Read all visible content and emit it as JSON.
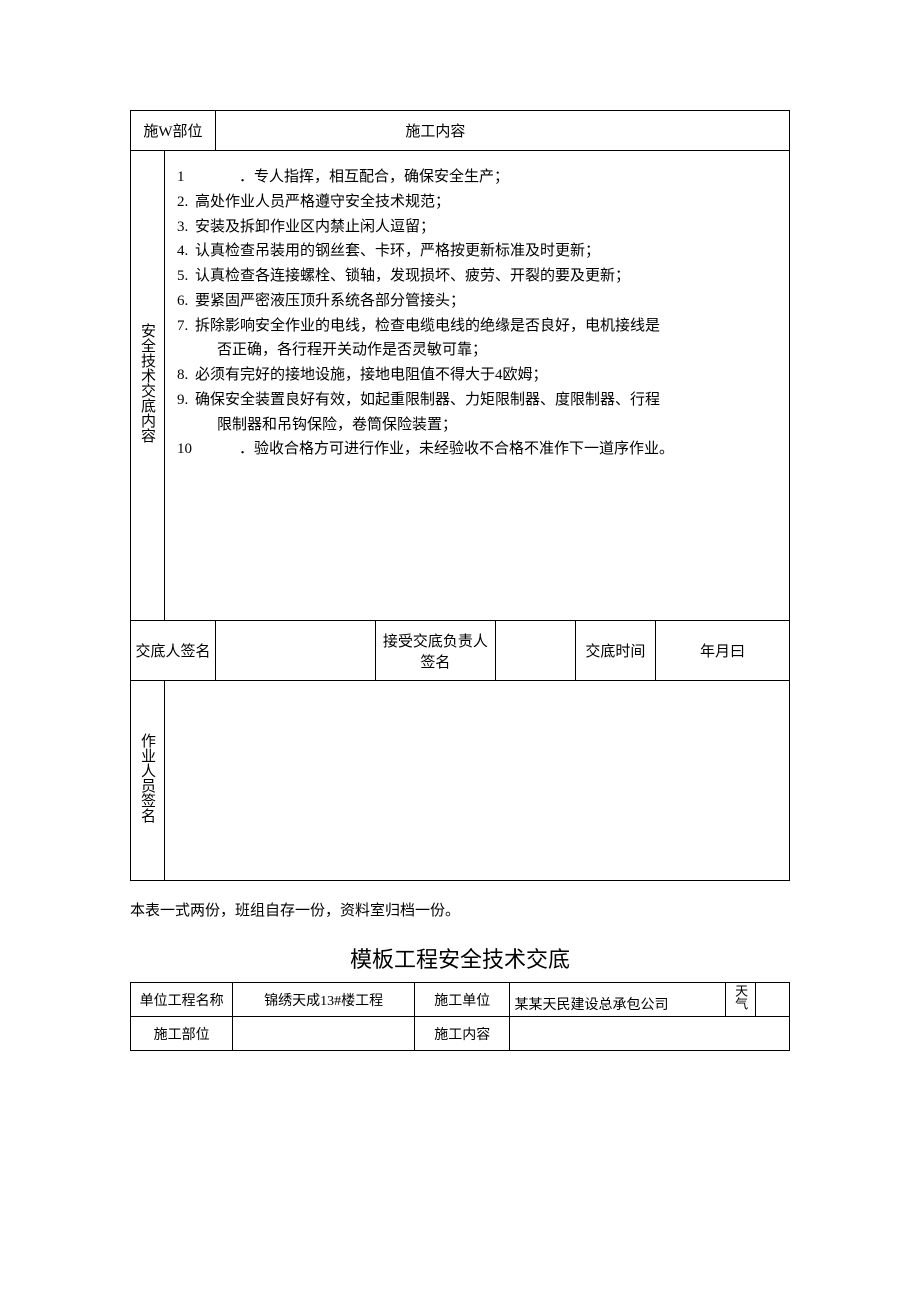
{
  "colors": {
    "border": "#000000",
    "text": "#000000",
    "background": "#ffffff"
  },
  "typography": {
    "body_font_family": "SimSun",
    "body_fontsize_pt": 11,
    "title_fontsize_pt": 16,
    "line_height": 1.65
  },
  "table1": {
    "row_location": {
      "label": "施W部位",
      "center_label": "施工内容",
      "value_left": "",
      "value_right": ""
    },
    "content": {
      "label": "安全技术交底内容",
      "items": [
        {
          "num": "1",
          "text": "．专人指挥，相互配合，确保安全生产；",
          "wide_num": true
        },
        {
          "num": "2.",
          "text": "高处作业人员严格遵守安全技术规范；"
        },
        {
          "num": "3.",
          "text": "安装及拆卸作业区内禁止闲人逗留；"
        },
        {
          "num": "4.",
          "text": "认真检查吊装用的钢丝套、卡环，严格按更新标准及时更新；"
        },
        {
          "num": "5.",
          "text": "认真检查各连接螺栓、锁轴，发现损坏、疲劳、开裂的要及更新；"
        },
        {
          "num": "6.",
          "text": "要紧固严密液压顶升系统各部分管接头；"
        },
        {
          "num": "7.",
          "text": "拆除影响安全作业的电线，检查电缆电线的绝缘是否良好，电机接线是",
          "cont": "否正确，各行程开关动作是否灵敏可靠；"
        },
        {
          "num": "8.",
          "text": "必须有完好的接地设施，接地电阻值不得大于4欧姆；"
        },
        {
          "num": "9.",
          "text": "确保安全装置良好有效，如起重限制器、力矩限制器、度限制器、行程",
          "cont": "限制器和吊钩保险，卷筒保险装置；"
        },
        {
          "num": "10",
          "text": "．验收合格方可进行作业，未经验收不合格不准作下一道序作业。",
          "wide_num": true
        }
      ]
    },
    "signature": {
      "label1": "交底人签名",
      "value1": "",
      "label2": "接受交底负责人签名",
      "value2": "",
      "label3": "交底时间",
      "value3": "年月曰"
    },
    "worker_sig": {
      "label": "作业人员签名",
      "value": ""
    }
  },
  "note": "本表一式两份，班组自存一份，资料室归档一份。",
  "title2": "模板工程安全技术交底",
  "table2": {
    "row1": {
      "c1": "单位工程名称",
      "c2": "锦绣天成13#楼工程",
      "c3": "施工单位",
      "c4": "某某天民建设总承包公司",
      "c5": "天气",
      "c6": ""
    },
    "row2": {
      "c1": "施工部位",
      "c2": "",
      "c3": "施工内容",
      "c4": ""
    }
  }
}
